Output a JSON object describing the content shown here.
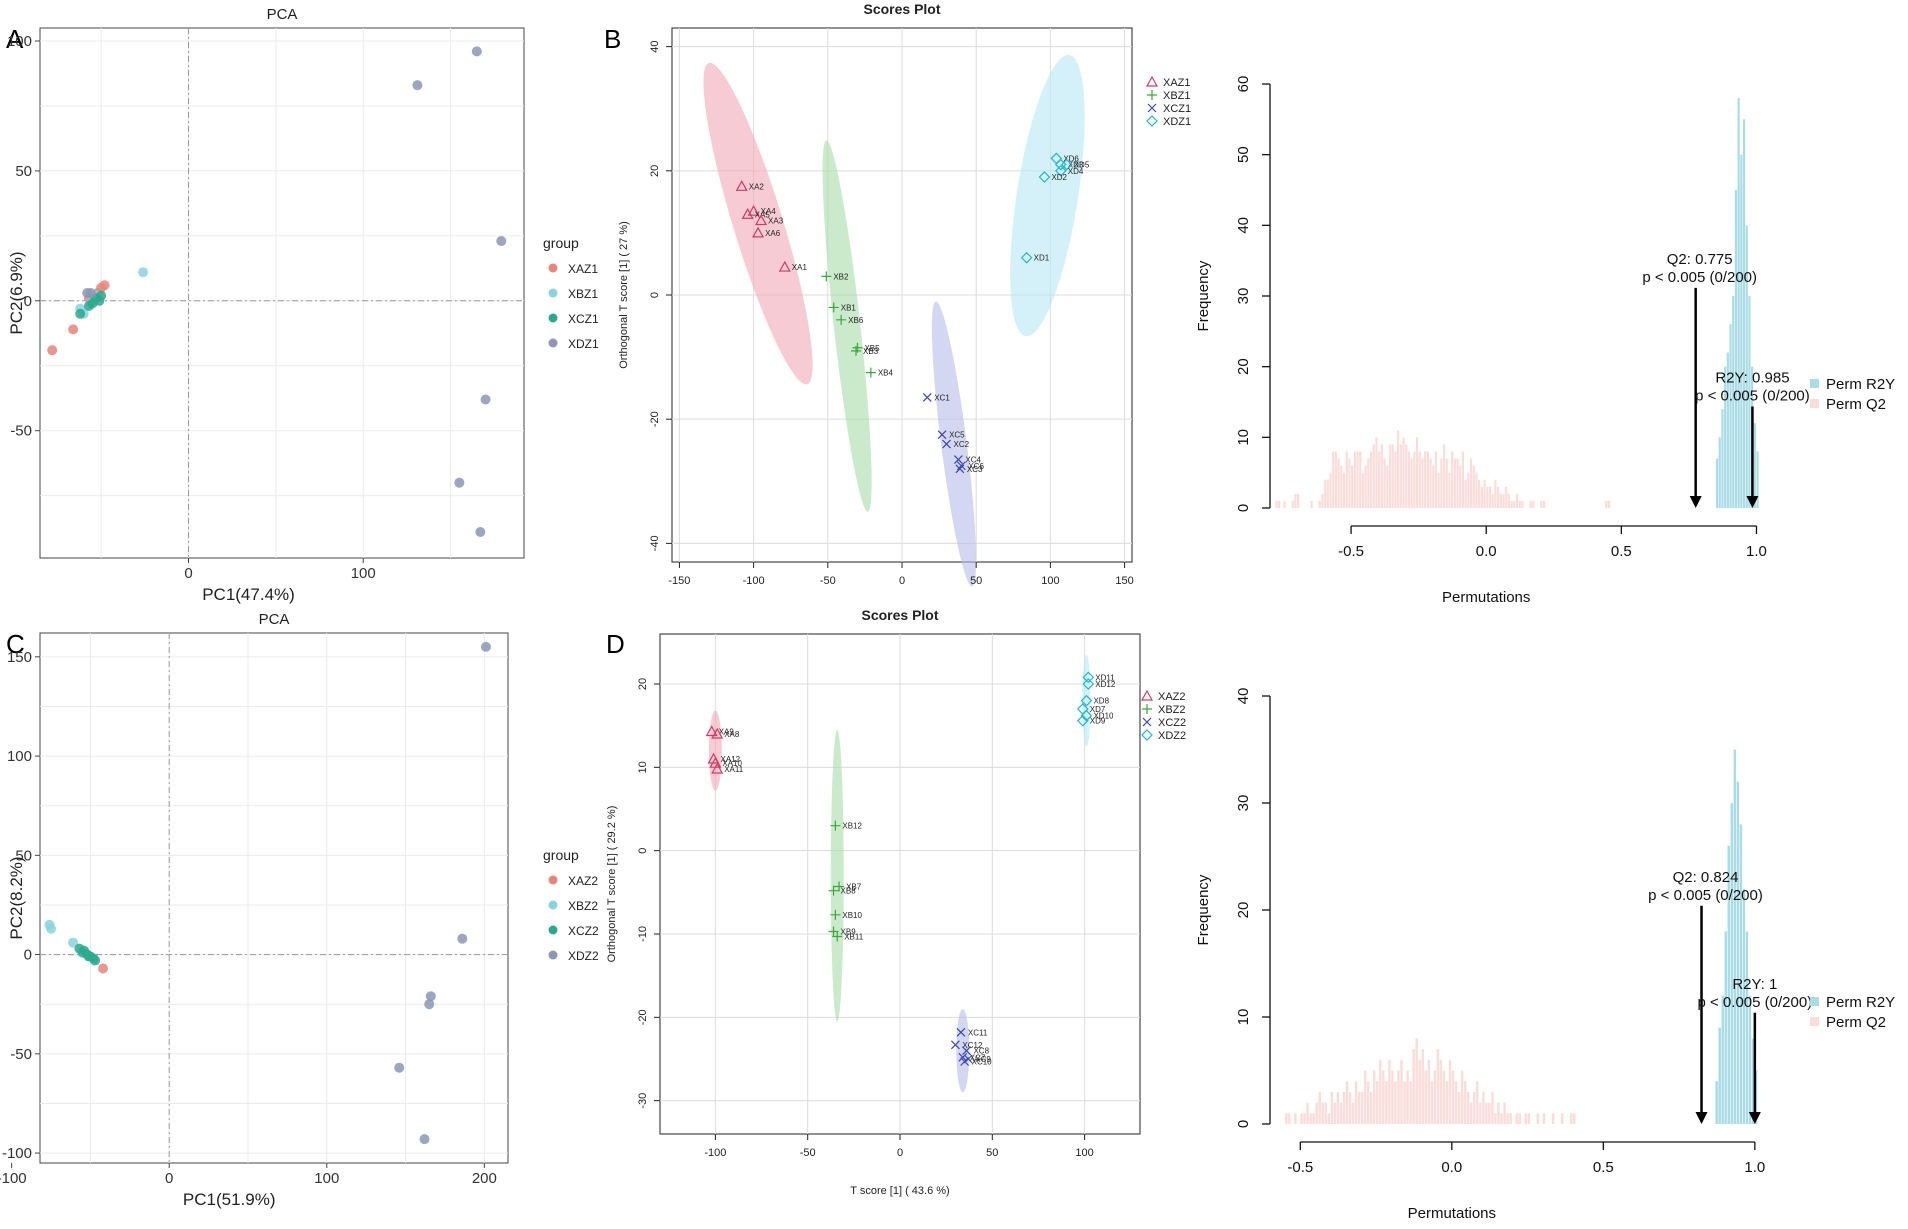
{
  "panel_letters": [
    "A",
    "B",
    "C",
    "D"
  ],
  "chart_data": [
    {
      "id": "A",
      "type": "scatter",
      "title": "PCA",
      "xlabel": "PC1(47.4%)",
      "ylabel": "PC2(6.9%)",
      "xlim": [
        -85,
        192
      ],
      "ylim": [
        -99,
        105
      ],
      "xticks": [
        0,
        100
      ],
      "yticks": [
        100,
        50,
        0,
        -50
      ],
      "grid": true,
      "legend_title": "group",
      "legend_position": "right",
      "series": [
        {
          "name": "XAZ1",
          "color": "#e8857a",
          "points": [
            [
              -78,
              -19
            ],
            [
              -66,
              -11
            ],
            [
              -48,
              6
            ],
            [
              -50,
              5
            ],
            [
              -52,
              3
            ],
            [
              -57,
              1
            ]
          ]
        },
        {
          "name": "XBZ1",
          "color": "#88d4de",
          "points": [
            [
              -26,
              11
            ],
            [
              -62,
              -3
            ],
            [
              -56,
              -1
            ],
            [
              -52,
              2
            ],
            [
              -60,
              -5
            ]
          ]
        },
        {
          "name": "XCZ1",
          "color": "#2aa98e",
          "points": [
            [
              -62,
              -5
            ],
            [
              -55,
              -1
            ],
            [
              -53,
              1
            ],
            [
              -51,
              0
            ],
            [
              -50,
              2
            ],
            [
              -57,
              -2
            ]
          ]
        },
        {
          "name": "XDZ1",
          "color": "#8c96b6",
          "points": [
            [
              -56,
              3
            ],
            [
              -58,
              3
            ],
            [
              131,
              83
            ],
            [
              165,
              96
            ],
            [
              179,
              23
            ],
            [
              170,
              -38
            ],
            [
              155,
              -70
            ],
            [
              167,
              -89
            ]
          ]
        }
      ]
    },
    {
      "id": "C",
      "type": "scatter",
      "title": "PCA",
      "xlabel": "PC1(51.9%)",
      "ylabel": "PC2(8.2%)",
      "xlim": [
        -82,
        215
      ],
      "ylim": [
        -105,
        162
      ],
      "xticks": [
        -100,
        0,
        100,
        200
      ],
      "yticks": [
        150,
        100,
        50,
        0,
        -50,
        -100
      ],
      "grid": true,
      "legend_title": "group",
      "legend_position": "right",
      "series": [
        {
          "name": "XAZ2",
          "color": "#e8857a",
          "points": [
            [
              -42,
              -7
            ]
          ]
        },
        {
          "name": "XBZ2",
          "color": "#88d4de",
          "points": [
            [
              -76,
              15
            ],
            [
              -75,
              13
            ],
            [
              -61,
              6
            ]
          ]
        },
        {
          "name": "XCZ2",
          "color": "#2aa98e",
          "points": [
            [
              -57,
              3
            ],
            [
              -55,
              1
            ],
            [
              -54,
              2
            ],
            [
              -52,
              0
            ],
            [
              -51,
              -1
            ],
            [
              -50,
              -1
            ],
            [
              -48,
              -2
            ],
            [
              -47,
              -3
            ]
          ]
        },
        {
          "name": "XDZ2",
          "color": "#8c96b6",
          "points": [
            [
              201,
              155
            ],
            [
              186,
              8
            ],
            [
              166,
              -21
            ],
            [
              165,
              -25
            ],
            [
              146,
              -57
            ],
            [
              162,
              -93
            ]
          ]
        }
      ]
    },
    {
      "id": "B",
      "type": "scatter",
      "title": "Scores Plot",
      "xlabel": "",
      "ylabel": "Orthogonal T score [1] ( 27 %)",
      "xlim": [
        -155,
        155
      ],
      "ylim": [
        -43,
        43
      ],
      "xticks": [
        -150,
        -100,
        -50,
        0,
        50,
        100,
        150
      ],
      "yticks": [
        40,
        20,
        0,
        -20,
        -40
      ],
      "grid": true,
      "legend_position": "right",
      "ellipses": [
        {
          "group": "XAZ1",
          "cx": -97,
          "cy": 11.5,
          "a": 42,
          "b": 5,
          "angle_deg": -38,
          "fill": "#f1a8b8"
        },
        {
          "group": "XBZ1",
          "cx": -37,
          "cy": -5,
          "a": 33,
          "b": 4.5,
          "angle_deg": -65,
          "fill": "#a8dca8"
        },
        {
          "group": "XCZ1",
          "cx": 35,
          "cy": -24,
          "a": 26,
          "b": 4,
          "angle_deg": -62,
          "fill": "#b8bce8"
        },
        {
          "group": "XDZ1",
          "cx": 98,
          "cy": 16,
          "a": 27,
          "b": 8.5,
          "angle_deg": 57,
          "fill": "#b8e8f5"
        }
      ],
      "series": [
        {
          "name": "XAZ1",
          "marker": "triangle",
          "color": "#d23a63",
          "points": [
            {
              "x": -108,
              "y": 17.5,
              "label": "XA2"
            },
            {
              "x": -100,
              "y": 13.5,
              "label": "XA4"
            },
            {
              "x": -104,
              "y": 13,
              "label": "XA5"
            },
            {
              "x": -95,
              "y": 12,
              "label": "XA3"
            },
            {
              "x": -97,
              "y": 10,
              "label": "XA6"
            },
            {
              "x": -79,
              "y": 4.5,
              "label": "XA1"
            }
          ]
        },
        {
          "name": "XBZ1",
          "marker": "plus",
          "color": "#3aa83a",
          "points": [
            {
              "x": -51,
              "y": 3,
              "label": "XB2"
            },
            {
              "x": -46,
              "y": -2,
              "label": "XB1"
            },
            {
              "x": -41,
              "y": -4,
              "label": "XB6"
            },
            {
              "x": -30,
              "y": -8.5,
              "label": "XB5"
            },
            {
              "x": -31,
              "y": -9,
              "label": "XB3"
            },
            {
              "x": -21,
              "y": -12.5,
              "label": "XB4"
            }
          ]
        },
        {
          "name": "XCZ1",
          "marker": "x",
          "color": "#3a46b8",
          "points": [
            {
              "x": 17,
              "y": -16.5,
              "label": "XC1"
            },
            {
              "x": 27,
              "y": -22.5,
              "label": "XC5"
            },
            {
              "x": 30,
              "y": -24,
              "label": "XC2"
            },
            {
              "x": 38,
              "y": -26.5,
              "label": "XC4"
            },
            {
              "x": 40,
              "y": -27.5,
              "label": "XC6"
            },
            {
              "x": 39,
              "y": -28,
              "label": "XC3"
            }
          ]
        },
        {
          "name": "XDZ1",
          "marker": "diamond",
          "color": "#22b6cc",
          "points": [
            {
              "x": 104,
              "y": 22,
              "label": "XD6"
            },
            {
              "x": 107,
              "y": 21,
              "label": "XD3"
            },
            {
              "x": 111,
              "y": 21,
              "label": "XD5"
            },
            {
              "x": 107,
              "y": 20,
              "label": "XD4"
            },
            {
              "x": 96,
              "y": 19,
              "label": "XD2"
            },
            {
              "x": 84,
              "y": 6,
              "label": "XD1"
            }
          ]
        }
      ]
    },
    {
      "id": "D",
      "type": "scatter",
      "title": "Scores Plot",
      "xlabel": "T score [1] ( 43.6 %)",
      "ylabel": "Orthogonal T score [1] ( 29.2 %)",
      "xlim": [
        -130,
        130
      ],
      "ylim": [
        -34,
        26
      ],
      "xticks": [
        -100,
        -50,
        0,
        50,
        100
      ],
      "yticks": [
        20,
        10,
        0,
        -10,
        -20,
        -30
      ],
      "grid": true,
      "legend_position": "right",
      "ellipses": [
        {
          "group": "XAZ2",
          "cx": -100,
          "cy": 12,
          "a": 4.8,
          "b": 3.5,
          "angle_deg": 90,
          "fill": "#f1a8b8"
        },
        {
          "group": "XBZ2",
          "cx": -34,
          "cy": -3,
          "a": 17.5,
          "b": 3.5,
          "angle_deg": 90,
          "fill": "#a8dca8"
        },
        {
          "group": "XCZ2",
          "cx": 34,
          "cy": -24,
          "a": 3.5,
          "b": 5,
          "angle_deg": 0,
          "fill": "#b8bce8"
        },
        {
          "group": "XDZ2",
          "cx": 101,
          "cy": 18,
          "a": 5.5,
          "b": 2.2,
          "angle_deg": 90,
          "fill": "#b8e8f5"
        }
      ],
      "series": [
        {
          "name": "XAZ2",
          "marker": "triangle",
          "color": "#d23a63",
          "points": [
            {
              "x": -102,
              "y": 14.3,
              "label": "XA9"
            },
            {
              "x": -99,
              "y": 14,
              "label": "XA8"
            },
            {
              "x": -101,
              "y": 11,
              "label": "XA12"
            },
            {
              "x": -100,
              "y": 10.5,
              "label": "XA10"
            },
            {
              "x": -99,
              "y": 9.8,
              "label": "XA11"
            }
          ]
        },
        {
          "name": "XBZ2",
          "marker": "plus",
          "color": "#3aa83a",
          "points": [
            {
              "x": -35,
              "y": 3,
              "label": "XB12"
            },
            {
              "x": -33,
              "y": -4.3,
              "label": "XB7"
            },
            {
              "x": -36,
              "y": -4.8,
              "label": "XB8"
            },
            {
              "x": -35,
              "y": -7.7,
              "label": "XB10"
            },
            {
              "x": -36,
              "y": -9.7,
              "label": "XB9"
            },
            {
              "x": -34,
              "y": -10.3,
              "label": "XB11"
            }
          ]
        },
        {
          "name": "XCZ2",
          "marker": "x",
          "color": "#3a46b8",
          "points": [
            {
              "x": 33,
              "y": -21.8,
              "label": "XC11"
            },
            {
              "x": 30,
              "y": -23.3,
              "label": "XC12"
            },
            {
              "x": 36,
              "y": -24,
              "label": "XC8"
            },
            {
              "x": 34,
              "y": -24.8,
              "label": "XC7"
            },
            {
              "x": 35,
              "y": -25.3,
              "label": "XC10"
            },
            {
              "x": 37,
              "y": -25,
              "label": "XC9"
            }
          ]
        },
        {
          "name": "XDZ2",
          "marker": "diamond",
          "color": "#22b6cc",
          "points": [
            {
              "x": 102,
              "y": 20.8,
              "label": "XD11"
            },
            {
              "x": 102,
              "y": 20,
              "label": "XD12"
            },
            {
              "x": 101,
              "y": 18,
              "label": "XD8"
            },
            {
              "x": 99,
              "y": 17,
              "label": "XD7"
            },
            {
              "x": 101,
              "y": 16.2,
              "label": "XD10"
            },
            {
              "x": 99,
              "y": 15.6,
              "label": "XD9"
            }
          ]
        }
      ]
    },
    {
      "id": "hist-top",
      "type": "bar",
      "title": "",
      "xlabel": "Permutations",
      "ylabel": "Frequency",
      "xlim": [
        -0.8,
        1.05
      ],
      "ylim": [
        0,
        60
      ],
      "xticks": [
        -0.5,
        0.0,
        0.5,
        1.0
      ],
      "xtick_labels": [
        "-0.5",
        "0.0",
        "0.5",
        "1.0"
      ],
      "yticks": [
        0,
        10,
        20,
        30,
        40,
        50,
        60
      ],
      "bin_width": 0.01,
      "legend_position": "right",
      "series": [
        {
          "name": "Perm R2Y",
          "color": "#a9dce6",
          "x_start": 0.85,
          "values": [
            7,
            10,
            14,
            20,
            22,
            26,
            30,
            45,
            58,
            50,
            55,
            40,
            30,
            20,
            12,
            8
          ]
        },
        {
          "name": "Perm Q2",
          "color": "#fadcd9",
          "x_start": -0.78,
          "values": [
            1,
            1,
            0,
            1,
            0,
            0,
            1,
            2,
            2,
            0,
            0,
            0,
            0,
            1,
            0,
            0,
            1,
            2,
            4,
            4,
            5,
            8,
            8,
            7,
            6,
            5,
            8,
            7,
            6,
            8,
            8,
            8,
            5,
            6,
            7,
            8,
            9,
            10,
            8,
            9,
            7,
            6,
            9,
            9,
            8,
            11,
            9,
            10,
            9,
            8,
            7,
            8,
            10,
            8,
            7,
            8,
            8,
            7,
            6,
            8,
            5,
            7,
            9,
            7,
            5,
            8,
            7,
            7,
            6,
            8,
            4,
            5,
            7,
            6,
            5,
            4,
            3,
            4,
            3,
            3,
            2,
            4,
            3,
            2,
            2,
            3,
            2,
            1,
            1,
            2,
            1,
            1,
            0,
            0,
            1,
            1,
            0,
            0,
            1,
            1,
            0,
            0,
            0,
            0,
            0,
            0,
            0,
            0,
            0,
            0,
            0,
            0,
            0,
            0,
            0,
            0,
            0,
            0,
            0,
            0,
            0,
            0,
            1,
            1
          ]
        }
      ],
      "annotations": [
        {
          "x": 0.775,
          "lines": [
            "Q2: 0.775",
            "p < 0.005 (0/200)"
          ]
        },
        {
          "x": 0.985,
          "lines": [
            "R2Y: 0.985",
            "p < 0.005 (0/200)"
          ]
        }
      ]
    },
    {
      "id": "hist-bottom",
      "type": "bar",
      "title": "",
      "xlabel": "Permutations",
      "ylabel": "Frequency",
      "xlim": [
        -0.6,
        1.05
      ],
      "ylim": [
        0,
        40
      ],
      "xticks": [
        -0.5,
        0.0,
        0.5,
        1.0
      ],
      "xtick_labels": [
        "-0.5",
        "0.0",
        "0.5",
        "1.0"
      ],
      "yticks": [
        0,
        10,
        20,
        30,
        40
      ],
      "bin_width": 0.01,
      "legend_position": "right",
      "series": [
        {
          "name": "Perm R2Y",
          "color": "#a9dce6",
          "x_start": 0.87,
          "values": [
            4,
            9,
            12,
            18,
            26,
            30,
            35,
            32,
            28,
            22,
            18,
            12,
            8,
            5
          ]
        },
        {
          "name": "Perm Q2",
          "color": "#fadcd9",
          "x_start": -0.55,
          "values": [
            1,
            1,
            0,
            1,
            0,
            1,
            1,
            2,
            1,
            1,
            2,
            3,
            2,
            2,
            1,
            3,
            2,
            3,
            2,
            3,
            4,
            3,
            2,
            4,
            3,
            3,
            5,
            4,
            3,
            5,
            4,
            6,
            5,
            4,
            6,
            5,
            4,
            5,
            6,
            4,
            5,
            4,
            7,
            8,
            6,
            7,
            5,
            6,
            4,
            5,
            7,
            6,
            5,
            4,
            6,
            5,
            4,
            3,
            5,
            4,
            3,
            2,
            3,
            4,
            2,
            3,
            2,
            2,
            3,
            1,
            2,
            1,
            2,
            1,
            1,
            0,
            1,
            1,
            0,
            1,
            1,
            0,
            0,
            1,
            0,
            1,
            0,
            0,
            1,
            0,
            0,
            1,
            0,
            0,
            1,
            1
          ]
        }
      ],
      "annotations": [
        {
          "x": 0.824,
          "lines": [
            "Q2: 0.824",
            "p < 0.005 (0/200)"
          ]
        },
        {
          "x": 1.0,
          "lines": [
            "R2Y: 1",
            "p < 0.005 (0/200)"
          ]
        }
      ]
    }
  ]
}
